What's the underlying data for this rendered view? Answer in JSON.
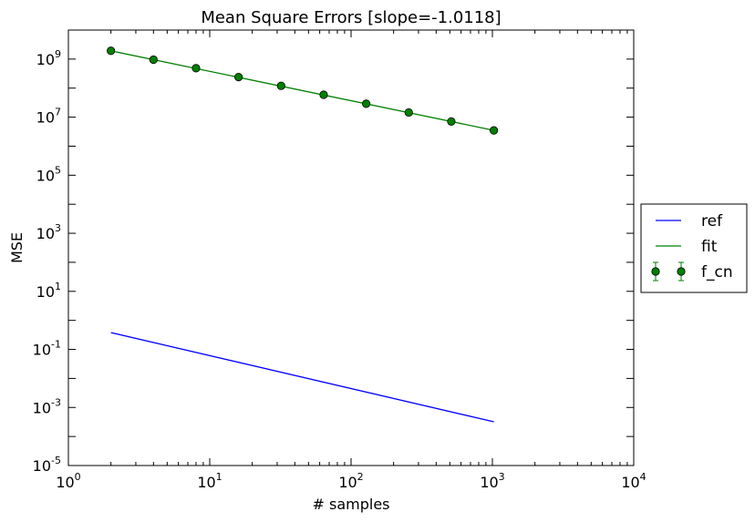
{
  "chart_data": {
    "type": "line",
    "title": "Mean Square Errors [slope=-1.0118]",
    "xlabel": "# samples",
    "ylabel": "MSE",
    "xscale": "log",
    "yscale": "log",
    "xlim": [
      1,
      10000
    ],
    "ylim": [
      1e-05,
      10000000000
    ],
    "x_ticks": [
      {
        "value": 1,
        "base": "10",
        "exp": "0"
      },
      {
        "value": 10,
        "base": "10",
        "exp": "1"
      },
      {
        "value": 100,
        "base": "10",
        "exp": "2"
      },
      {
        "value": 1000,
        "base": "10",
        "exp": "3"
      },
      {
        "value": 10000,
        "base": "10",
        "exp": "4"
      }
    ],
    "y_ticks": [
      {
        "value": 1e-05,
        "base": "10",
        "exp": "-5"
      },
      {
        "value": 0.001,
        "base": "10",
        "exp": "-3"
      },
      {
        "value": 0.1,
        "base": "10",
        "exp": "-1"
      },
      {
        "value": 10,
        "base": "10",
        "exp": "1"
      },
      {
        "value": 1000,
        "base": "10",
        "exp": "3"
      },
      {
        "value": 100000,
        "base": "10",
        "exp": "5"
      },
      {
        "value": 10000000,
        "base": "10",
        "exp": "7"
      },
      {
        "value": 1000000000,
        "base": "10",
        "exp": "9"
      }
    ],
    "grid": false,
    "legend_position": "right (outside axes)",
    "series": [
      {
        "name": "ref",
        "kind": "line",
        "color": "#0000ff",
        "x": [
          2,
          1024
        ],
        "y": [
          0.38,
          0.00032
        ]
      },
      {
        "name": "fit",
        "kind": "line",
        "color": "#008000",
        "x": [
          2,
          1024
        ],
        "y": [
          1930000000,
          3500000
        ]
      },
      {
        "name": "f_cn",
        "kind": "errorbar-markers",
        "color": "#008000",
        "x": [
          2,
          4,
          8,
          16,
          32,
          64,
          128,
          256,
          512,
          1024
        ],
        "y": [
          1930000000,
          955000000,
          485000000,
          240000000,
          120000000,
          59000000,
          29000000,
          14500000,
          7100000,
          3500000
        ]
      }
    ]
  }
}
